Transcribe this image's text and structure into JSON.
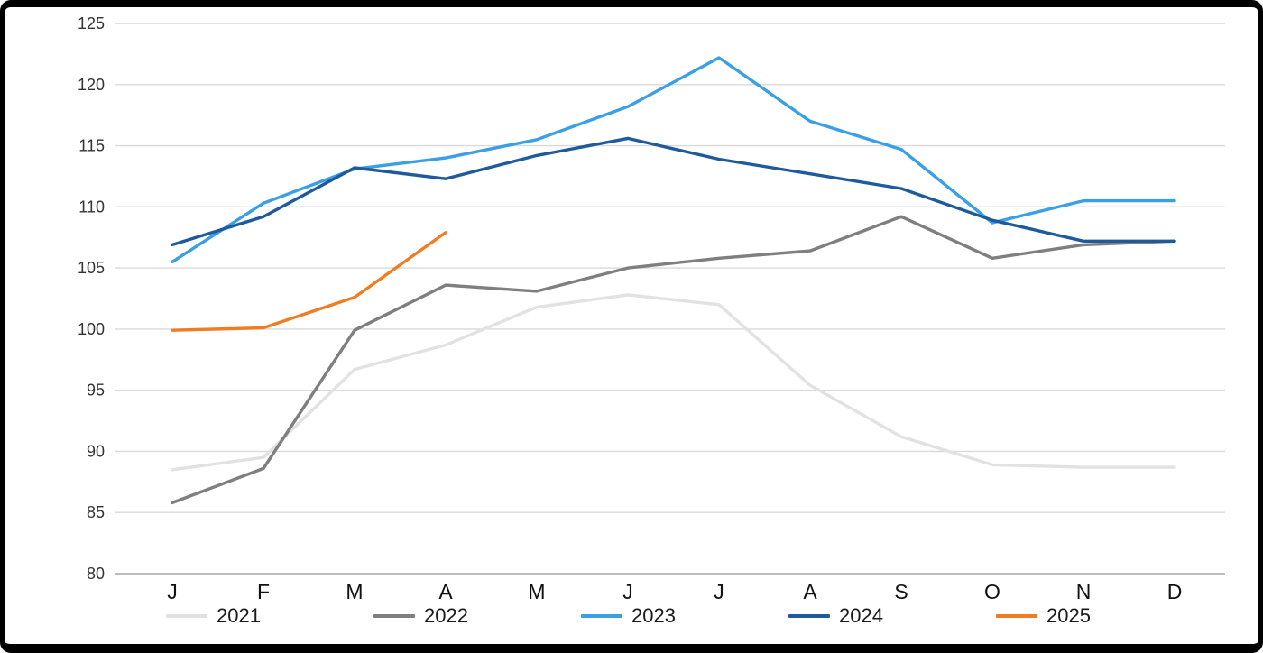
{
  "chart_data": {
    "type": "line",
    "title": "",
    "xlabel": "",
    "ylabel": "",
    "x": [
      "J",
      "F",
      "M",
      "A",
      "M",
      "J",
      "J",
      "A",
      "S",
      "O",
      "N",
      "D"
    ],
    "ylim": [
      80,
      125
    ],
    "ytick_step": 5,
    "grid": true,
    "legend_position": "bottom",
    "colors": {
      "gridline": "#d9d9d9",
      "axis_line": "#a6a6a6",
      "y_tick_text": "#333333",
      "x_tick_text": "#111111"
    },
    "series": [
      {
        "name": "2021",
        "color": "#e2e2e2",
        "values": [
          88.5,
          89.5,
          96.7,
          98.7,
          101.8,
          102.8,
          102.0,
          95.4,
          91.2,
          88.9,
          88.7,
          88.7
        ]
      },
      {
        "name": "2022",
        "color": "#7f7f7f",
        "values": [
          85.8,
          88.6,
          99.9,
          103.6,
          103.1,
          105.0,
          105.8,
          106.4,
          109.2,
          105.8,
          106.9,
          107.2
        ]
      },
      {
        "name": "2023",
        "color": "#3a9fe5",
        "values": [
          105.5,
          110.3,
          113.1,
          114.0,
          115.5,
          118.2,
          122.2,
          117.0,
          114.7,
          108.7,
          110.5,
          110.5
        ]
      },
      {
        "name": "2024",
        "color": "#1e5a9c",
        "values": [
          106.9,
          109.2,
          113.2,
          112.3,
          114.2,
          115.6,
          113.9,
          112.7,
          111.5,
          108.9,
          107.2,
          107.2
        ]
      },
      {
        "name": "2025",
        "color": "#f07d23",
        "values": [
          99.9,
          100.1,
          102.6,
          107.9,
          null,
          null,
          null,
          null,
          null,
          null,
          null,
          null
        ]
      }
    ]
  }
}
